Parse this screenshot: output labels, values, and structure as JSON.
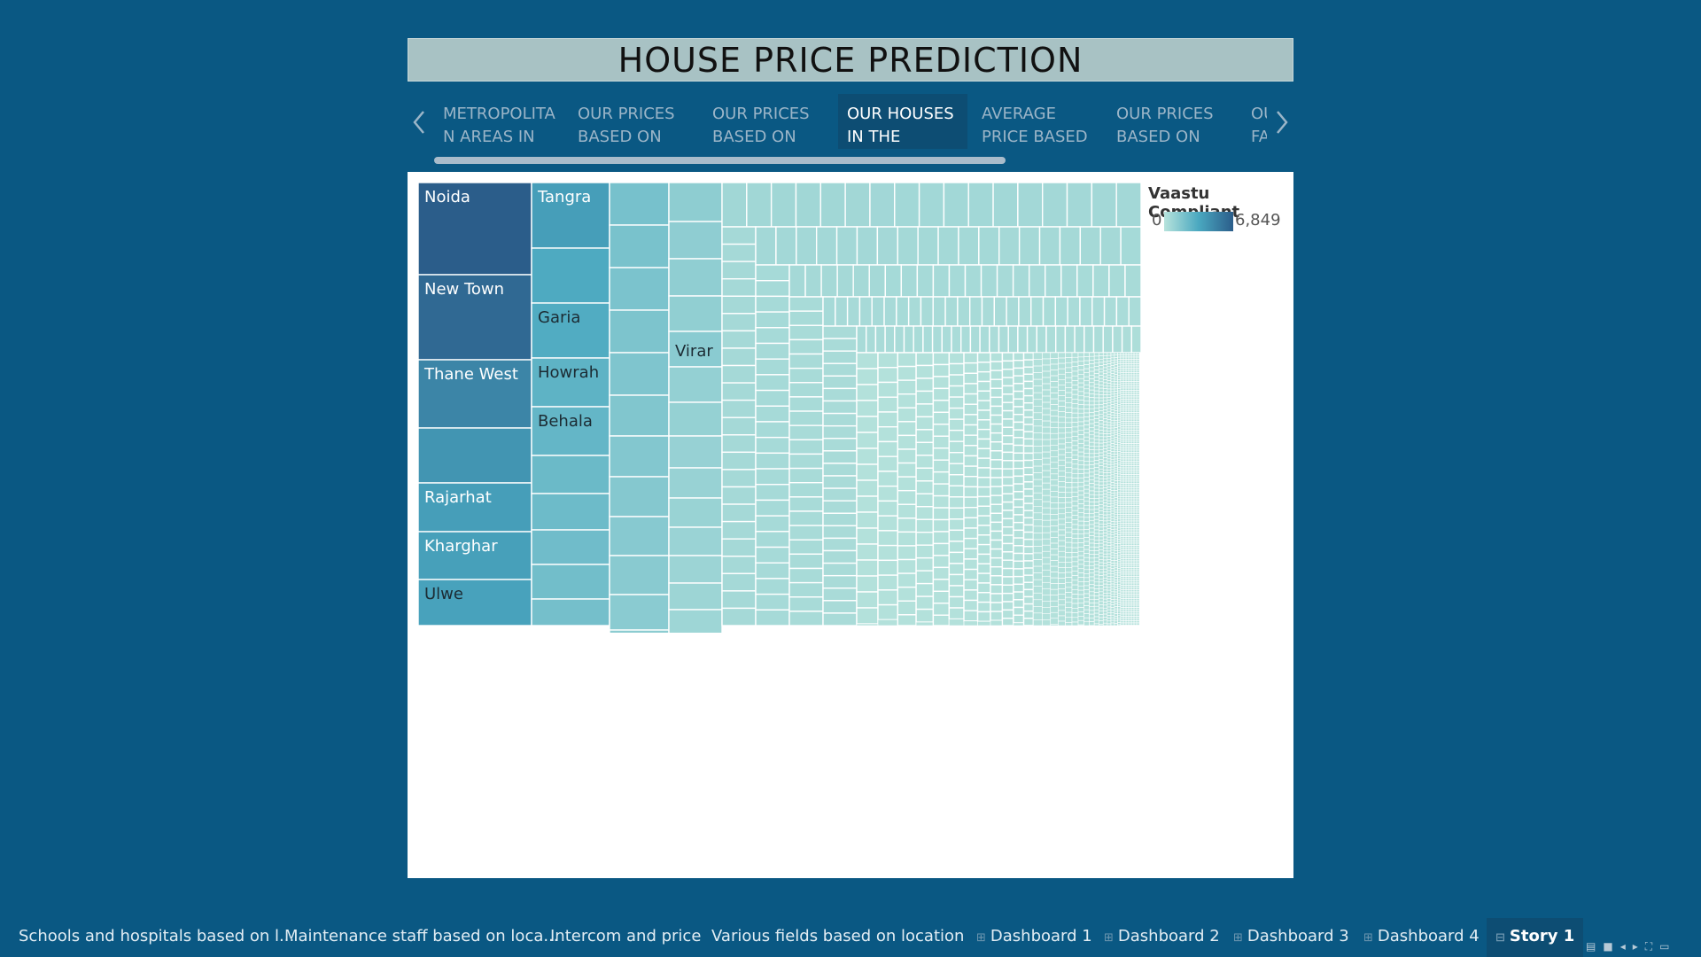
{
  "story": {
    "title": "HOUSE PRICE PREDICTION",
    "points": [
      {
        "label": "METROPOLITA N AREAS IN",
        "active": false
      },
      {
        "label": "OUR PRICES BASED ON",
        "active": false
      },
      {
        "label": "OUR PRICES BASED ON THE",
        "active": false
      },
      {
        "label": "OUR HOUSES IN THE",
        "active": true
      },
      {
        "label": "AVERAGE PRICE BASED",
        "active": false
      },
      {
        "label": "OUR PRICES BASED ON",
        "active": false
      },
      {
        "label": "OU FA",
        "active": false
      }
    ]
  },
  "legend": {
    "title": "Vaastu Compliant",
    "min_label": "0",
    "max_label": "6,849",
    "colors": [
      "#b7e3dc",
      "#4aa8c0",
      "#2b5d8a"
    ]
  },
  "chart_data": {
    "type": "treemap",
    "measure": "Vaastu Compliant",
    "color_range": [
      0,
      6849
    ],
    "cells": [
      {
        "label": "Noida",
        "value": 6849
      },
      {
        "label": "New Town",
        "value": 6300
      },
      {
        "label": "Thane West",
        "value": 5000
      },
      {
        "label": "",
        "value": 4300
      },
      {
        "label": "Rajarhat",
        "value": 3900
      },
      {
        "label": "Kharghar",
        "value": 3800
      },
      {
        "label": "Ulwe",
        "value": 3700
      },
      {
        "label": "Tangra",
        "value": 3900
      },
      {
        "label": "",
        "value": 3300
      },
      {
        "label": "Garia",
        "value": 3200
      },
      {
        "label": "Howrah",
        "value": 2800
      },
      {
        "label": "Behala",
        "value": 2600
      },
      {
        "label": "Virar",
        "value": 1400
      }
    ]
  },
  "tabs": [
    {
      "label": "Schools and hospitals based on l...",
      "type": "sheet",
      "active": false
    },
    {
      "label": "Maintenance staff based on loca...",
      "type": "sheet",
      "active": false
    },
    {
      "label": "Intercom and price",
      "type": "sheet",
      "active": false
    },
    {
      "label": "Various fields based on location",
      "type": "sheet",
      "active": false
    },
    {
      "label": "Dashboard 1",
      "type": "dashboard",
      "active": false
    },
    {
      "label": "Dashboard 2",
      "type": "dashboard",
      "active": false
    },
    {
      "label": "Dashboard 3",
      "type": "dashboard",
      "active": false
    },
    {
      "label": "Dashboard 4",
      "type": "dashboard",
      "active": false
    },
    {
      "label": "Story 1",
      "type": "story",
      "active": true
    }
  ],
  "toolbar": {
    "icons": [
      "sheet-sorter-icon",
      "filmstrip-icon",
      "previous-sheet-icon",
      "next-sheet-icon",
      "fullscreen-icon",
      "presentation-mode-icon"
    ]
  }
}
